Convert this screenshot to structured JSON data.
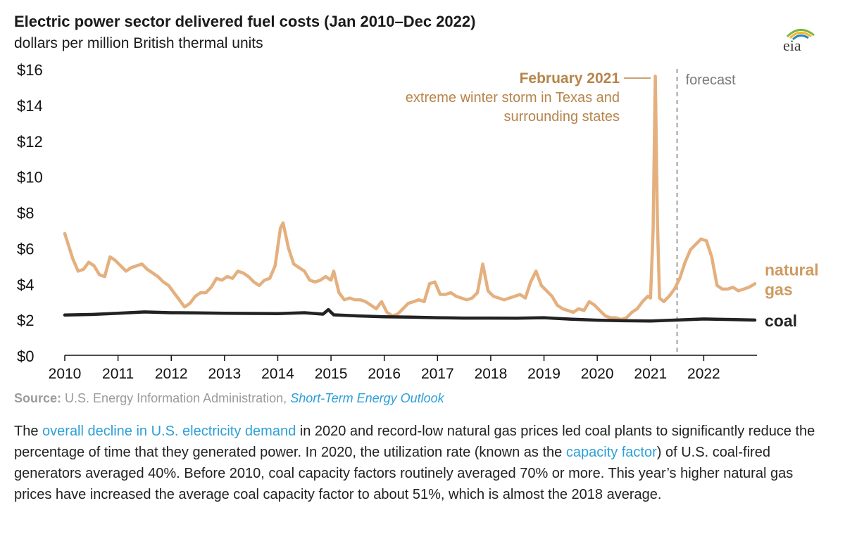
{
  "header": {
    "title": "Electric power sector delivered fuel costs (Jan 2010–Dec 2022)",
    "subtitle": "dollars per million British thermal units",
    "logo_text": "eia"
  },
  "annotation": {
    "bold": "February 2021",
    "line1": "extreme winter storm in Texas and",
    "line2": "surrounding states"
  },
  "forecast_label": "forecast",
  "source": {
    "label": "Source:",
    "agency": "U.S. Energy Information Administration,",
    "report": "Short-Term Energy Outlook"
  },
  "paragraph": {
    "p1": "The ",
    "link1": "overall decline in U.S. electricity demand",
    "p2": " in 2020 and record-low natural gas prices led coal plants to significantly reduce the percentage of time that they generated power. In 2020, the utilization rate (known as the ",
    "link2": "capacity factor",
    "p3": ") of U.S. coal-fired generators averaged 40%. Before 2010, coal capacity factors routinely averaged 70% or more. This year’s higher natural gas prices have increased the average coal capacity factor to about 51%, which is almost the 2018 average."
  },
  "colors": {
    "gas": "#e4b07e",
    "gas_label": "#cf9b61",
    "annotation": "#b7844a",
    "coal": "#222222",
    "axis": "#111111",
    "forecast_line": "#a0a0a0",
    "link": "#2d9fd8",
    "source": "#9b9b9b"
  },
  "chart_data": {
    "type": "line",
    "title": "Electric power sector delivered fuel costs (Jan 2010–Dec 2022)",
    "ylabel": "dollars per million British thermal units",
    "xlim": [
      2010,
      2023
    ],
    "ylim": [
      0,
      16
    ],
    "yticks": [
      0,
      2,
      4,
      6,
      8,
      10,
      12,
      14,
      16
    ],
    "ytick_labels": [
      "$0",
      "$2",
      "$4",
      "$6",
      "$8",
      "$10",
      "$12",
      "$14",
      "$16"
    ],
    "xticks": [
      2010,
      2011,
      2012,
      2013,
      2014,
      2015,
      2016,
      2017,
      2018,
      2019,
      2020,
      2021,
      2022
    ],
    "xtick_labels": [
      "2010",
      "2011",
      "2012",
      "2013",
      "2014",
      "2015",
      "2016",
      "2017",
      "2018",
      "2019",
      "2020",
      "2021",
      "2022"
    ],
    "forecast_start": 2021.5,
    "series": [
      {
        "name": "natural gas",
        "label_lines": [
          "natural",
          "gas"
        ],
        "x": [
          2010.0,
          2010.15,
          2010.25,
          2010.35,
          2010.45,
          2010.55,
          2010.65,
          2010.75,
          2010.85,
          2010.95,
          2011.05,
          2011.15,
          2011.25,
          2011.35,
          2011.45,
          2011.55,
          2011.65,
          2011.75,
          2011.85,
          2011.95,
          2012.05,
          2012.15,
          2012.25,
          2012.35,
          2012.45,
          2012.55,
          2012.65,
          2012.75,
          2012.85,
          2012.95,
          2013.05,
          2013.15,
          2013.25,
          2013.35,
          2013.45,
          2013.55,
          2013.65,
          2013.75,
          2013.85,
          2013.95,
          2014.05,
          2014.1,
          2014.2,
          2014.3,
          2014.4,
          2014.5,
          2014.6,
          2014.7,
          2014.8,
          2014.9,
          2015.0,
          2015.05,
          2015.15,
          2015.25,
          2015.35,
          2015.45,
          2015.55,
          2015.65,
          2015.75,
          2015.85,
          2015.95,
          2016.05,
          2016.15,
          2016.25,
          2016.35,
          2016.45,
          2016.55,
          2016.65,
          2016.75,
          2016.85,
          2016.95,
          2017.05,
          2017.15,
          2017.25,
          2017.35,
          2017.45,
          2017.55,
          2017.65,
          2017.75,
          2017.85,
          2017.95,
          2018.05,
          2018.15,
          2018.25,
          2018.35,
          2018.45,
          2018.55,
          2018.65,
          2018.75,
          2018.85,
          2018.95,
          2019.05,
          2019.15,
          2019.25,
          2019.35,
          2019.45,
          2019.55,
          2019.65,
          2019.75,
          2019.85,
          2019.95,
          2020.05,
          2020.15,
          2020.25,
          2020.35,
          2020.45,
          2020.55,
          2020.65,
          2020.75,
          2020.85,
          2020.95,
          2021.0,
          2021.05,
          2021.09,
          2021.13,
          2021.17,
          2021.25,
          2021.35,
          2021.45,
          2021.55,
          2021.65,
          2021.75,
          2021.85,
          2021.95,
          2022.05,
          2022.15,
          2022.25,
          2022.35,
          2022.45,
          2022.55,
          2022.65,
          2022.75,
          2022.85,
          2022.96
        ],
        "y": [
          6.8,
          5.4,
          4.7,
          4.8,
          5.2,
          5.0,
          4.5,
          4.4,
          5.5,
          5.3,
          5.0,
          4.7,
          4.9,
          5.0,
          5.1,
          4.8,
          4.6,
          4.4,
          4.1,
          3.9,
          3.5,
          3.1,
          2.7,
          2.9,
          3.3,
          3.5,
          3.5,
          3.8,
          4.3,
          4.2,
          4.4,
          4.3,
          4.7,
          4.6,
          4.4,
          4.1,
          3.9,
          4.2,
          4.3,
          5.0,
          7.1,
          7.4,
          6.0,
          5.1,
          4.9,
          4.7,
          4.2,
          4.1,
          4.2,
          4.4,
          4.2,
          4.7,
          3.5,
          3.1,
          3.2,
          3.1,
          3.1,
          3.0,
          2.8,
          2.6,
          3.0,
          2.4,
          2.2,
          2.3,
          2.6,
          2.9,
          3.0,
          3.1,
          3.0,
          4.0,
          4.1,
          3.4,
          3.4,
          3.5,
          3.3,
          3.2,
          3.1,
          3.2,
          3.5,
          5.1,
          3.6,
          3.3,
          3.2,
          3.1,
          3.2,
          3.3,
          3.4,
          3.2,
          4.1,
          4.7,
          3.9,
          3.6,
          3.3,
          2.8,
          2.6,
          2.5,
          2.4,
          2.6,
          2.5,
          3.0,
          2.8,
          2.5,
          2.2,
          2.1,
          2.1,
          2.0,
          2.1,
          2.4,
          2.6,
          3.0,
          3.3,
          3.2,
          7.0,
          15.6,
          7.5,
          3.2,
          3.0,
          3.3,
          3.7,
          4.3,
          5.2,
          5.9,
          6.2,
          6.5,
          6.4,
          5.5,
          3.9,
          3.7,
          3.7,
          3.8,
          3.6,
          3.7,
          3.8,
          4.0
        ]
      },
      {
        "name": "coal",
        "label_lines": [
          "coal"
        ],
        "x": [
          2010.0,
          2010.5,
          2011.0,
          2011.5,
          2012.0,
          2012.5,
          2013.0,
          2013.5,
          2014.0,
          2014.5,
          2014.85,
          2014.95,
          2015.05,
          2015.5,
          2016.0,
          2016.5,
          2017.0,
          2017.5,
          2018.0,
          2018.5,
          2019.0,
          2019.5,
          2020.0,
          2020.5,
          2021.0,
          2021.5,
          2022.0,
          2022.5,
          2022.96
        ],
        "y": [
          2.25,
          2.28,
          2.35,
          2.42,
          2.38,
          2.37,
          2.35,
          2.34,
          2.33,
          2.38,
          2.3,
          2.55,
          2.26,
          2.2,
          2.15,
          2.13,
          2.1,
          2.08,
          2.08,
          2.07,
          2.1,
          2.02,
          1.96,
          1.93,
          1.92,
          1.97,
          2.03,
          2.0,
          1.97
        ]
      }
    ],
    "annotations": [
      "February 2021",
      "extreme winter storm in Texas and",
      "surrounding states",
      "forecast"
    ]
  }
}
